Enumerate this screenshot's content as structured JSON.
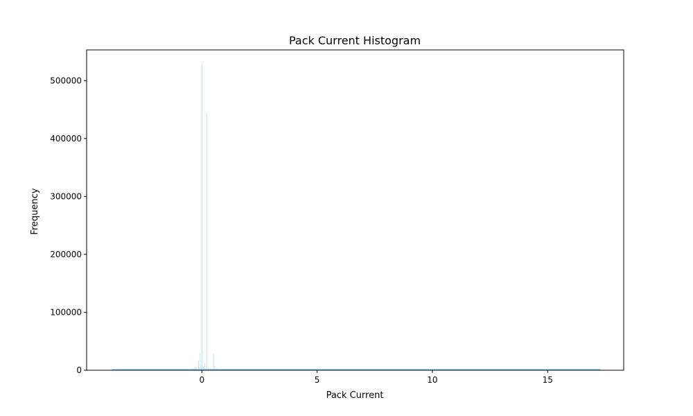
{
  "colors": {
    "bar_fill": "#87CEEB",
    "bar_fill_opacity": 0.55,
    "axes_edge": "#000000",
    "background": "#ffffff"
  },
  "chart_data": {
    "type": "bar",
    "title": "Pack Current Histogram",
    "xlabel": "Pack Current",
    "ylabel": "Frequency",
    "xlim": [
      -5.0,
      18.3
    ],
    "ylim": [
      0,
      553000
    ],
    "xticks": [
      0,
      5,
      10,
      15
    ],
    "xtick_labels": [
      "0",
      "5",
      "10",
      "15"
    ],
    "yticks": [
      0,
      100000,
      200000,
      300000,
      400000,
      500000
    ],
    "ytick_labels": [
      "0",
      "100000",
      "200000",
      "300000",
      "400000",
      "500000"
    ],
    "grid": false,
    "legend": "none",
    "series": [
      {
        "bin_width": 0.02,
        "bins": [
          {
            "x": -3.9,
            "count": 1500
          },
          {
            "x": -3.5,
            "count": 1500
          },
          {
            "x": -3.0,
            "count": 1500
          },
          {
            "x": -2.5,
            "count": 1500
          },
          {
            "x": -2.0,
            "count": 1500
          },
          {
            "x": -1.5,
            "count": 1500
          },
          {
            "x": -1.0,
            "count": 1600
          },
          {
            "x": -0.6,
            "count": 2000
          },
          {
            "x": -0.4,
            "count": 3500
          },
          {
            "x": -0.3,
            "count": 5500
          },
          {
            "x": -0.25,
            "count": 4500
          },
          {
            "x": -0.15,
            "count": 15000
          },
          {
            "x": -0.08,
            "count": 30000
          },
          {
            "x": -0.02,
            "count": 8000
          },
          {
            "x": 0.0,
            "count": 528000
          },
          {
            "x": 0.06,
            "count": 6000
          },
          {
            "x": 0.12,
            "count": 12000
          },
          {
            "x": 0.2,
            "count": 445000
          },
          {
            "x": 0.28,
            "count": 5000
          },
          {
            "x": 0.35,
            "count": 3000
          },
          {
            "x": 0.45,
            "count": 2500
          },
          {
            "x": 0.5,
            "count": 29000
          },
          {
            "x": 0.56,
            "count": 8000
          },
          {
            "x": 0.65,
            "count": 4000
          },
          {
            "x": 0.8,
            "count": 2000
          },
          {
            "x": 1.0,
            "count": 1800
          },
          {
            "x": 1.3,
            "count": 1500
          },
          {
            "x": 1.6,
            "count": 1500
          },
          {
            "x": 2.0,
            "count": 1400
          },
          {
            "x": 2.5,
            "count": 1300
          },
          {
            "x": 3.0,
            "count": 1300
          },
          {
            "x": 3.5,
            "count": 1200
          },
          {
            "x": 4.0,
            "count": 1200
          },
          {
            "x": 4.5,
            "count": 1200
          },
          {
            "x": 5.0,
            "count": 1500
          },
          {
            "x": 5.5,
            "count": 1100
          },
          {
            "x": 6.0,
            "count": 1100
          },
          {
            "x": 7.0,
            "count": 1000
          },
          {
            "x": 8.0,
            "count": 1000
          },
          {
            "x": 9.0,
            "count": 1000
          },
          {
            "x": 10.0,
            "count": 1300
          },
          {
            "x": 11.0,
            "count": 900
          },
          {
            "x": 12.0,
            "count": 900
          },
          {
            "x": 13.0,
            "count": 900
          },
          {
            "x": 14.0,
            "count": 900
          },
          {
            "x": 15.0,
            "count": 1100
          },
          {
            "x": 16.0,
            "count": 800
          },
          {
            "x": 17.0,
            "count": 800
          },
          {
            "x": 17.3,
            "count": 700
          }
        ]
      }
    ]
  }
}
